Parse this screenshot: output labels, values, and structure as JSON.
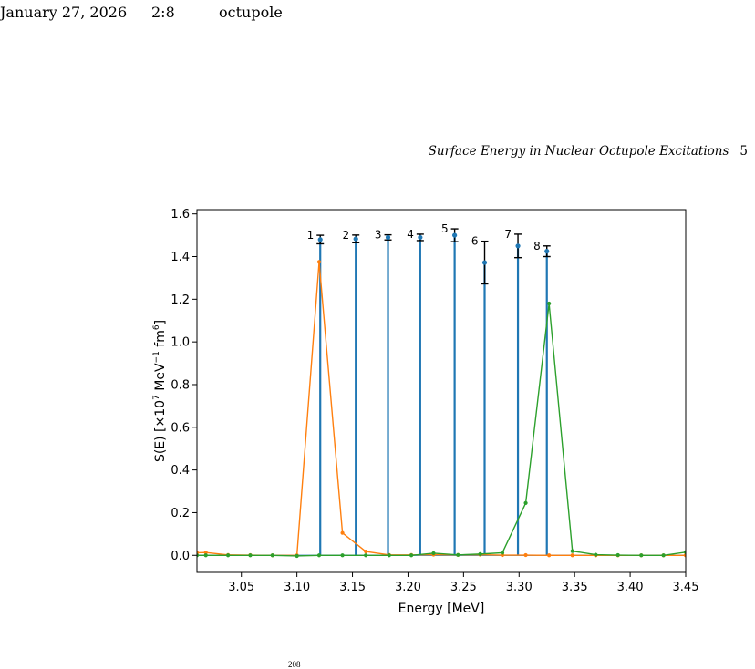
{
  "running_header": {
    "date": "January 27, 2026",
    "time": "2:8",
    "short_title": "octupole"
  },
  "page_header": {
    "title": "Surface Energy in Nuclear Octupole Excitations",
    "page_number": "5"
  },
  "footer_fragment": "208",
  "chart_data": {
    "type": "line",
    "xlabel": "Energy [MeV]",
    "ylabel_parts": [
      "S(E) [×10",
      "7",
      " MeV",
      "−1",
      " fm",
      "6",
      "]"
    ],
    "xlim": [
      3.01,
      3.45
    ],
    "ylim": [
      -0.08,
      1.62
    ],
    "x_ticks": [
      3.05,
      3.1,
      3.15,
      3.2,
      3.25,
      3.3,
      3.35,
      3.4,
      3.45
    ],
    "y_ticks": [
      0.0,
      0.2,
      0.4,
      0.6,
      0.8,
      1.0,
      1.2,
      1.4,
      1.6
    ],
    "grid": false,
    "colors": {
      "stems": "#1f77b4",
      "orange": "#ff7f0e",
      "green": "#2ca02c",
      "errorbars": "#000000"
    },
    "stems": [
      {
        "label": "1",
        "x": 3.121,
        "y": 1.48,
        "err": 0.02
      },
      {
        "label": "2",
        "x": 3.153,
        "y": 1.483,
        "err": 0.018
      },
      {
        "label": "3",
        "x": 3.182,
        "y": 1.49,
        "err": 0.012
      },
      {
        "label": "4",
        "x": 3.211,
        "y": 1.49,
        "err": 0.015
      },
      {
        "label": "5",
        "x": 3.242,
        "y": 1.5,
        "err": 0.03
      },
      {
        "label": "6",
        "x": 3.269,
        "y": 1.372,
        "err": 0.1
      },
      {
        "label": "7",
        "x": 3.299,
        "y": 1.45,
        "err": 0.055
      },
      {
        "label": "8",
        "x": 3.325,
        "y": 1.425,
        "err": 0.025
      }
    ],
    "series": [
      {
        "color_key": "orange",
        "x": [
          3.01,
          3.018,
          3.038,
          3.058,
          3.078,
          3.1,
          3.12,
          3.141,
          3.162,
          3.183,
          3.203,
          3.223,
          3.245,
          3.265,
          3.285,
          3.306,
          3.327,
          3.348,
          3.369,
          3.389,
          3.41,
          3.43,
          3.45
        ],
        "y": [
          0.012,
          0.013,
          0.002,
          0.001,
          0.0,
          0.0,
          1.375,
          0.105,
          0.018,
          0.002,
          0.002,
          0.003,
          0.002,
          0.003,
          0.001,
          0.001,
          0.0,
          0.0,
          0.0,
          0.0,
          0.0,
          0.0,
          0.0
        ]
      },
      {
        "color_key": "green",
        "x": [
          3.01,
          3.018,
          3.038,
          3.058,
          3.078,
          3.1,
          3.12,
          3.141,
          3.162,
          3.183,
          3.203,
          3.223,
          3.245,
          3.265,
          3.285,
          3.306,
          3.327,
          3.348,
          3.369,
          3.389,
          3.41,
          3.43,
          3.45
        ],
        "y": [
          0.0,
          0.0,
          0.0,
          0.0,
          0.0,
          -0.003,
          0.0,
          0.0,
          0.0,
          0.0,
          0.0,
          0.01,
          0.002,
          0.006,
          0.012,
          0.245,
          1.18,
          0.02,
          0.003,
          0.001,
          0.0,
          0.0,
          0.015
        ]
      }
    ]
  }
}
